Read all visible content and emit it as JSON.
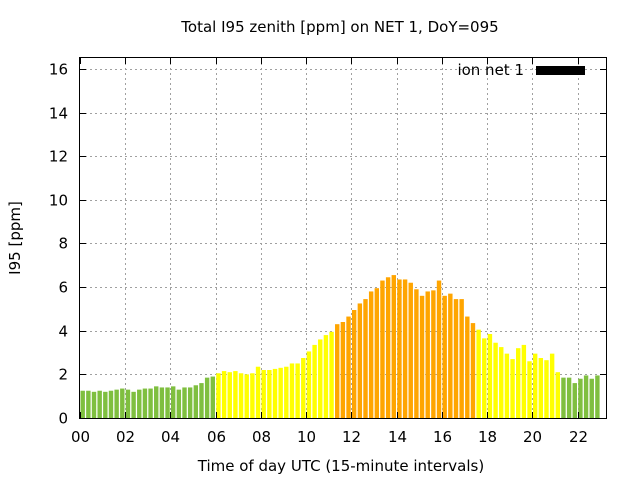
{
  "chart_data": {
    "type": "bar",
    "title": "Total I95 zenith [ppm] on NET 1, DoY=095",
    "xlabel": "Time of day UTC (15-minute intervals)",
    "ylabel": "I95 [ppm]",
    "xlim": [
      0,
      23.25
    ],
    "ylim": [
      0,
      16.5
    ],
    "xticks": [
      {
        "value": 0,
        "label": "00"
      },
      {
        "value": 2,
        "label": "02"
      },
      {
        "value": 4,
        "label": "04"
      },
      {
        "value": 6,
        "label": "06"
      },
      {
        "value": 8,
        "label": "08"
      },
      {
        "value": 10,
        "label": "10"
      },
      {
        "value": 12,
        "label": "12"
      },
      {
        "value": 14,
        "label": "14"
      },
      {
        "value": 16,
        "label": "16"
      },
      {
        "value": 18,
        "label": "18"
      },
      {
        "value": 20,
        "label": "20"
      },
      {
        "value": 22,
        "label": "22"
      }
    ],
    "yticks": [
      {
        "value": 0,
        "label": "0"
      },
      {
        "value": 2,
        "label": "2"
      },
      {
        "value": 4,
        "label": "4"
      },
      {
        "value": 6,
        "label": "6"
      },
      {
        "value": 8,
        "label": "8"
      },
      {
        "value": 10,
        "label": "10"
      },
      {
        "value": 12,
        "label": "12"
      },
      {
        "value": 14,
        "label": "14"
      },
      {
        "value": 16,
        "label": "16"
      }
    ],
    "grid": true,
    "legend": {
      "position": "top-right",
      "entries": [
        {
          "label": "ion net 1",
          "color": "#000000"
        }
      ]
    },
    "colors": {
      "green": "#7fbf3f",
      "yellow": "#ffff00",
      "orange": "#ffa500"
    },
    "bar_step_hours": 0.25,
    "values": [
      1.25,
      1.25,
      1.2,
      1.25,
      1.2,
      1.25,
      1.3,
      1.35,
      1.3,
      1.2,
      1.3,
      1.35,
      1.35,
      1.45,
      1.4,
      1.4,
      1.45,
      1.3,
      1.4,
      1.4,
      1.5,
      1.6,
      1.85,
      1.9,
      2.05,
      2.15,
      2.1,
      2.15,
      2.05,
      2.0,
      2.05,
      2.35,
      2.2,
      2.2,
      2.25,
      2.3,
      2.35,
      2.5,
      2.5,
      2.75,
      3.05,
      3.35,
      3.6,
      3.8,
      3.95,
      4.3,
      4.4,
      4.65,
      4.95,
      5.25,
      5.45,
      5.8,
      5.95,
      6.3,
      6.45,
      6.55,
      6.35,
      6.35,
      6.2,
      5.9,
      5.6,
      5.8,
      5.85,
      6.3,
      5.6,
      5.7,
      5.45,
      5.45,
      4.65,
      4.35,
      4.05,
      3.65,
      3.85,
      3.45,
      3.25,
      2.95,
      2.7,
      3.2,
      3.35,
      2.6,
      2.95,
      2.75,
      2.65,
      2.95,
      2.1,
      1.85,
      1.85,
      1.6,
      1.8,
      1.95,
      1.8,
      1.95
    ],
    "bar_colors": [
      "green",
      "green",
      "green",
      "green",
      "green",
      "green",
      "green",
      "green",
      "green",
      "green",
      "green",
      "green",
      "green",
      "green",
      "green",
      "green",
      "green",
      "green",
      "green",
      "green",
      "green",
      "green",
      "green",
      "green",
      "yellow",
      "yellow",
      "yellow",
      "yellow",
      "yellow",
      "yellow",
      "yellow",
      "yellow",
      "yellow",
      "yellow",
      "yellow",
      "yellow",
      "yellow",
      "yellow",
      "yellow",
      "yellow",
      "yellow",
      "yellow",
      "yellow",
      "yellow",
      "yellow",
      "orange",
      "orange",
      "orange",
      "orange",
      "orange",
      "orange",
      "orange",
      "orange",
      "orange",
      "orange",
      "orange",
      "orange",
      "orange",
      "orange",
      "orange",
      "orange",
      "orange",
      "orange",
      "orange",
      "orange",
      "orange",
      "orange",
      "orange",
      "orange",
      "orange",
      "yellow",
      "yellow",
      "yellow",
      "yellow",
      "yellow",
      "yellow",
      "yellow",
      "yellow",
      "yellow",
      "yellow",
      "yellow",
      "yellow",
      "yellow",
      "yellow",
      "yellow",
      "green",
      "green",
      "green",
      "green",
      "green",
      "green",
      "green"
    ]
  }
}
